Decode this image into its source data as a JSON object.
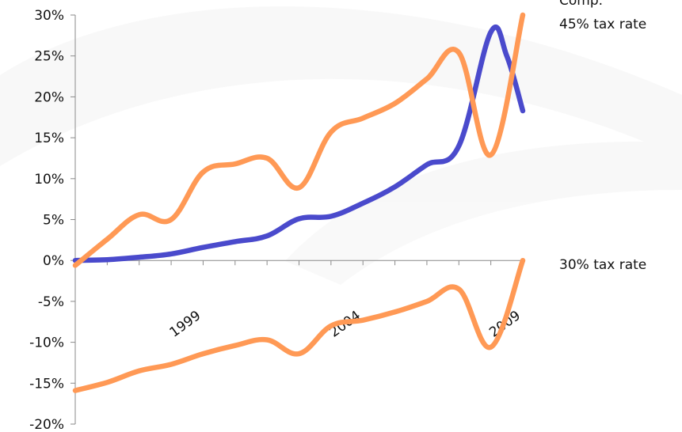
{
  "chart_data": {
    "type": "line",
    "xlim": [
      1995,
      2009
    ],
    "ylim": [
      -20,
      30
    ],
    "y_ticks": [
      "-20%",
      "-15%",
      "-10%",
      "-5%",
      "0%",
      "5%",
      "10%",
      "15%",
      "20%",
      "25%",
      "30%"
    ],
    "x_tick_labels": [
      {
        "year": 1999,
        "label": "1999"
      },
      {
        "year": 2004,
        "label": "2004"
      },
      {
        "year": 2009,
        "label": "2009"
      }
    ],
    "grid": false,
    "series": [
      {
        "name": "Comp.",
        "color": "#4a4acc",
        "x": [
          1995,
          1996,
          1997,
          1998,
          1999,
          2000,
          2001,
          2002,
          2003,
          2004,
          2005,
          2006,
          2007,
          2008,
          2008.5,
          2009
        ],
        "y": [
          0.0,
          0.1,
          0.4,
          0.8,
          1.6,
          2.3,
          3.0,
          5.1,
          5.4,
          7.0,
          9.0,
          11.7,
          14.0,
          27.9,
          25.0,
          18.3
        ]
      },
      {
        "name": "45% tax rate",
        "color": "#ff9955",
        "x": [
          1995,
          1996,
          1997,
          1998,
          1999,
          2000,
          2001,
          2002,
          2003,
          2004,
          2005,
          2006,
          2007,
          2008,
          2009
        ],
        "y": [
          -0.6,
          2.6,
          5.6,
          5.0,
          10.8,
          11.8,
          12.5,
          8.9,
          15.7,
          17.4,
          19.2,
          22.2,
          25.4,
          12.9,
          30.0
        ]
      },
      {
        "name": "30% tax rate",
        "color": "#ff9955",
        "x": [
          1995,
          1996,
          1997,
          1998,
          1999,
          2000,
          2001,
          2002,
          2003,
          2004,
          2005,
          2006,
          2007,
          2008,
          2009
        ],
        "y": [
          -15.9,
          -14.9,
          -13.5,
          -12.7,
          -11.4,
          -10.4,
          -9.7,
          -11.4,
          -8.0,
          -7.3,
          -6.3,
          -5.0,
          -3.5,
          -10.6,
          0.0
        ]
      }
    ],
    "legend_labels": [
      "Comp.",
      "45% tax rate",
      "30% tax rate"
    ]
  }
}
